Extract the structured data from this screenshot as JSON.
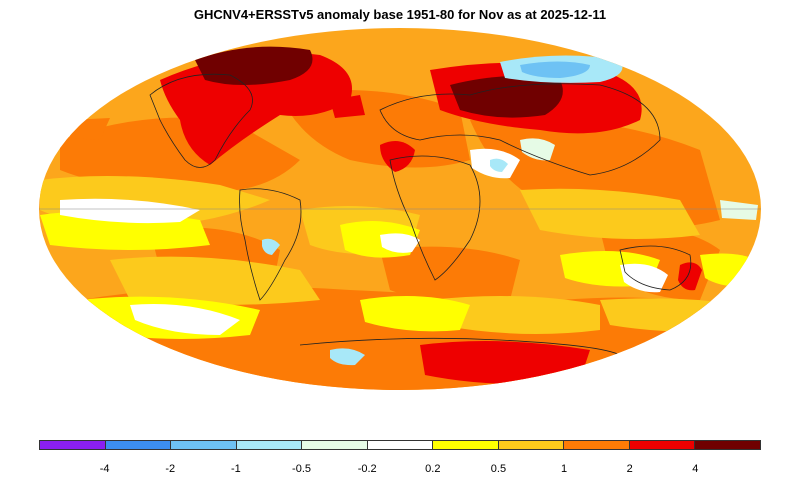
{
  "title": "GHCNV4+ERSSTv5 anomaly base 1951-80 for Nov as at 2025-12-11",
  "map": {
    "projection": "mollweide",
    "base_color": "#fca61c"
  },
  "legend": {
    "colors": [
      "#8a1ff0",
      "#3c8ef0",
      "#6ec2f4",
      "#a8e8f8",
      "#e6fbe6",
      "#ffffff",
      "#ffff00",
      "#fcca1c",
      "#fc7b06",
      "#ee0000",
      "#700000"
    ],
    "ticks": [
      "-4",
      "-2",
      "-1",
      "-0.5",
      "-0.2",
      "0.2",
      "0.5",
      "1",
      "2",
      "4"
    ]
  },
  "chart_data": {
    "type": "heatmap",
    "title": "GHCNV4+ERSSTv5 anomaly base 1951-80 for Nov as at 2025-12-11",
    "color_scale_bounds": [
      -4,
      -2,
      -1,
      -0.5,
      -0.2,
      0.2,
      0.5,
      1,
      2,
      4
    ]
  }
}
